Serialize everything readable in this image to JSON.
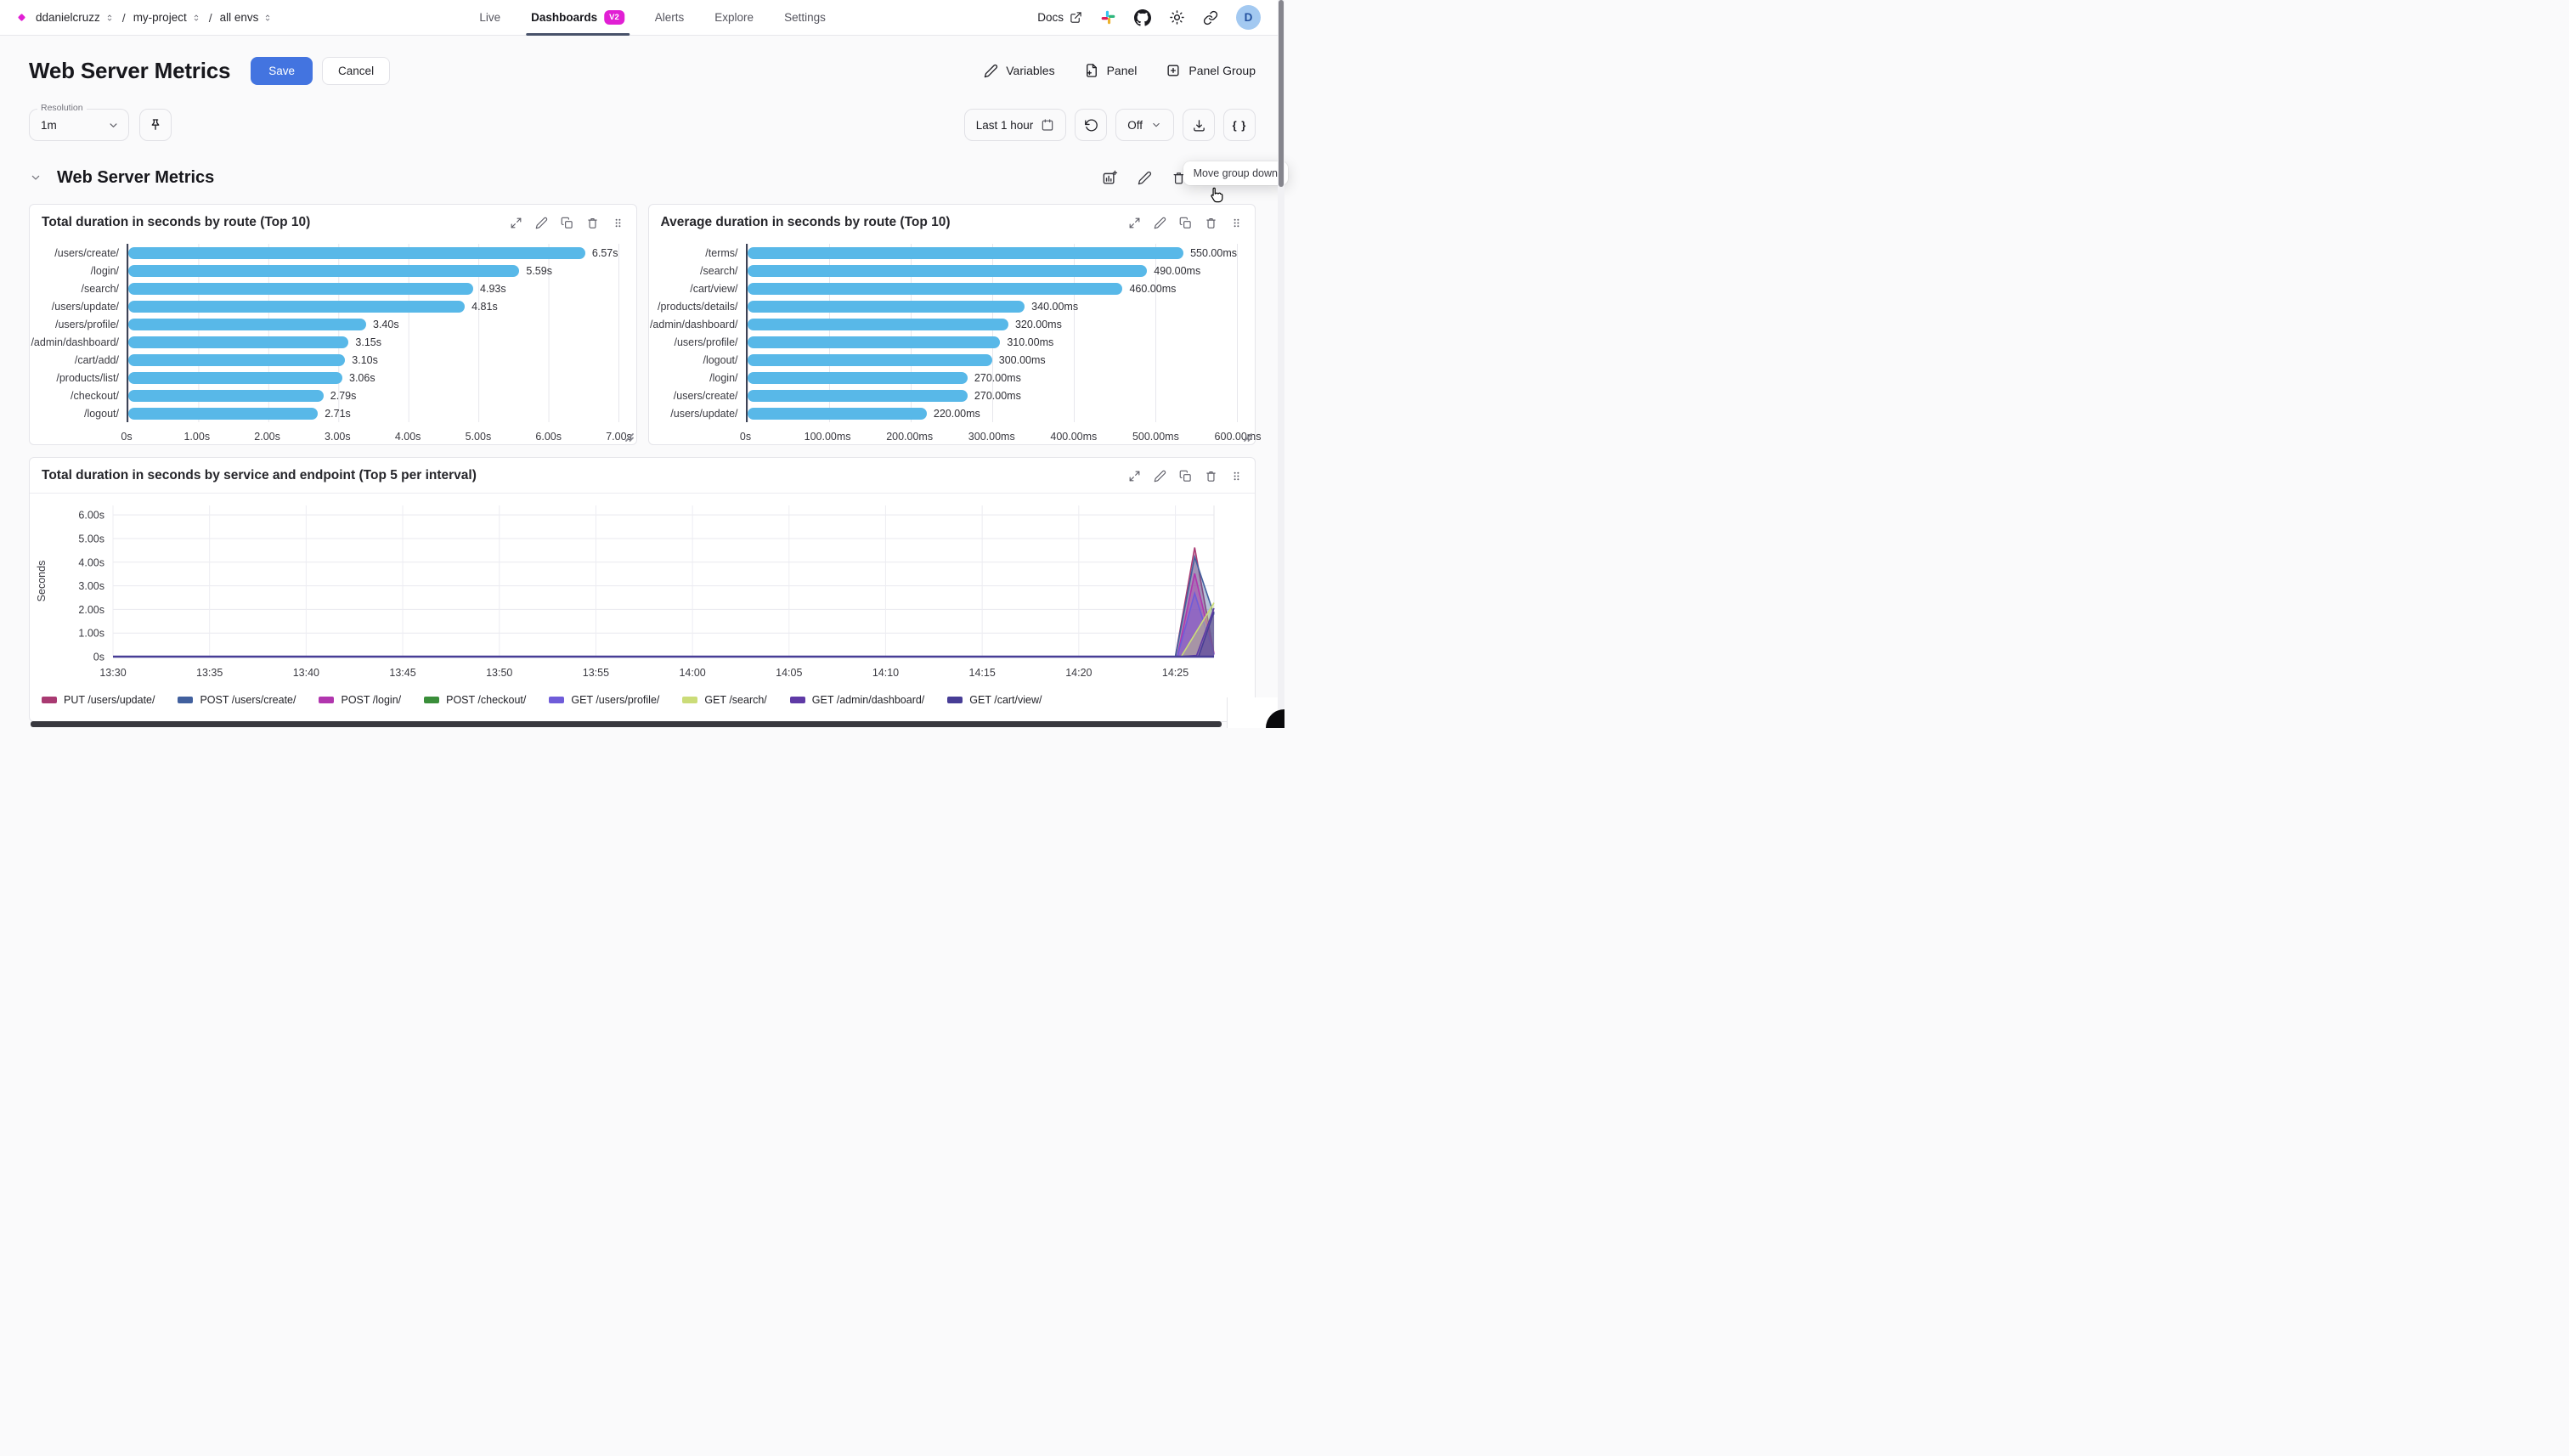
{
  "topbar": {
    "breadcrumb": {
      "org": "ddanielcruzz",
      "project": "my-project",
      "env": "all envs",
      "separator": "/"
    },
    "nav": {
      "live": "Live",
      "dashboards": "Dashboards",
      "dashboards_badge": "V2",
      "alerts": "Alerts",
      "explore": "Explore",
      "settings": "Settings"
    },
    "docs_label": "Docs",
    "avatar_initial": "D"
  },
  "header": {
    "title": "Web Server Metrics",
    "save": "Save",
    "cancel": "Cancel",
    "variables": "Variables",
    "panel": "Panel",
    "panel_group": "Panel Group"
  },
  "toolbar": {
    "resolution_label": "Resolution",
    "resolution_value": "1m",
    "time_range": "Last 1 hour",
    "refresh_mode": "Off",
    "braces": "{ }"
  },
  "tooltip": "Move group down",
  "section": {
    "title": "Web Server Metrics"
  },
  "chart_data": [
    {
      "type": "bar",
      "orientation": "horizontal",
      "title": "Total duration in seconds by route (Top 10)",
      "categories": [
        "/users/create/",
        "/login/",
        "/search/",
        "/users/update/",
        "/users/profile/",
        "/admin/dashboard/",
        "/cart/add/",
        "/products/list/",
        "/checkout/",
        "/logout/"
      ],
      "values": [
        6.57,
        5.59,
        4.93,
        4.81,
        3.4,
        3.15,
        3.1,
        3.06,
        2.79,
        2.71
      ],
      "value_labels": [
        "6.57s",
        "5.59s",
        "4.93s",
        "4.81s",
        "3.40s",
        "3.15s",
        "3.10s",
        "3.06s",
        "2.79s",
        "2.71s"
      ],
      "x_ticks": [
        "0s",
        "1.00s",
        "2.00s",
        "3.00s",
        "4.00s",
        "5.00s",
        "6.00s",
        "7.00s"
      ],
      "xlim": [
        0,
        7
      ],
      "unit": "seconds",
      "bar_color": "#58b8e8",
      "grid": true
    },
    {
      "type": "bar",
      "orientation": "horizontal",
      "title": "Average duration in seconds by route (Top 10)",
      "categories": [
        "/terms/",
        "/search/",
        "/cart/view/",
        "/products/details/",
        "/admin/dashboard/",
        "/users/profile/",
        "/logout/",
        "/login/",
        "/users/create/",
        "/users/update/"
      ],
      "values": [
        550,
        490,
        460,
        340,
        320,
        310,
        300,
        270,
        270,
        220
      ],
      "value_labels": [
        "550.00ms",
        "490.00ms",
        "460.00ms",
        "340.00ms",
        "320.00ms",
        "310.00ms",
        "300.00ms",
        "270.00ms",
        "270.00ms",
        "220.00ms"
      ],
      "x_ticks": [
        "0s",
        "100.00ms",
        "200.00ms",
        "300.00ms",
        "400.00ms",
        "500.00ms",
        "600.00ms"
      ],
      "xlim": [
        0,
        600
      ],
      "unit": "milliseconds",
      "bar_color": "#58b8e8",
      "grid": true
    },
    {
      "type": "area",
      "title": "Total duration in seconds by service and endpoint (Top 5 per interval)",
      "ylabel": "Seconds",
      "y_ticks": [
        "0s",
        "1.00s",
        "2.00s",
        "3.00s",
        "4.00s",
        "5.00s",
        "6.00s"
      ],
      "ylim": [
        0,
        6.4
      ],
      "x_domain_minutes": 57,
      "x_ticks": [
        {
          "m": 0,
          "label": "13:30"
        },
        {
          "m": 5,
          "label": "13:35"
        },
        {
          "m": 10,
          "label": "13:40"
        },
        {
          "m": 15,
          "label": "13:45"
        },
        {
          "m": 20,
          "label": "13:50"
        },
        {
          "m": 25,
          "label": "13:55"
        },
        {
          "m": 30,
          "label": "14:00"
        },
        {
          "m": 35,
          "label": "14:05"
        },
        {
          "m": 40,
          "label": "14:10"
        },
        {
          "m": 45,
          "label": "14:15"
        },
        {
          "m": 50,
          "label": "14:20"
        },
        {
          "m": 55,
          "label": "14:25"
        }
      ],
      "baseline_color": "#473d96",
      "legend_position": "bottom",
      "grid": true,
      "series": [
        {
          "name": "PUT /users/update/",
          "color": "#a93a72",
          "points": [
            [
              0,
              0
            ],
            [
              55,
              0
            ],
            [
              56,
              4.62
            ],
            [
              57,
              0.12
            ]
          ]
        },
        {
          "name": "POST /users/create/",
          "color": "#41609e",
          "points": [
            [
              0,
              0
            ],
            [
              55,
              0
            ],
            [
              56,
              4.22
            ],
            [
              57,
              1.78
            ]
          ]
        },
        {
          "name": "POST /login/",
          "color": "#b136ae",
          "points": [
            [
              0,
              0
            ],
            [
              55.1,
              0
            ],
            [
              56,
              3.52
            ],
            [
              57,
              0.12
            ]
          ]
        },
        {
          "name": "POST /checkout/",
          "color": "#3a8e3a",
          "points": [
            [
              0,
              0
            ],
            [
              57,
              0
            ]
          ]
        },
        {
          "name": "GET /users/profile/",
          "color": "#6f5cd9",
          "points": [
            [
              0,
              0
            ],
            [
              55.1,
              0
            ],
            [
              56,
              2.68
            ],
            [
              57,
              0.08
            ]
          ]
        },
        {
          "name": "GET /search/",
          "color": "#cbdc78",
          "points": [
            [
              0,
              0
            ],
            [
              55.3,
              0
            ],
            [
              57,
              2.28
            ]
          ]
        },
        {
          "name": "GET /admin/dashboard/",
          "color": "#5f3aa6",
          "points": [
            [
              0,
              0
            ],
            [
              55.2,
              0
            ],
            [
              56.1,
              0.05
            ],
            [
              57,
              2.05
            ]
          ]
        },
        {
          "name": "GET /cart/view/",
          "color": "#473d96",
          "points": [
            [
              0,
              0
            ],
            [
              55.2,
              0
            ],
            [
              56.2,
              0
            ],
            [
              57,
              1.9
            ]
          ]
        }
      ]
    }
  ]
}
